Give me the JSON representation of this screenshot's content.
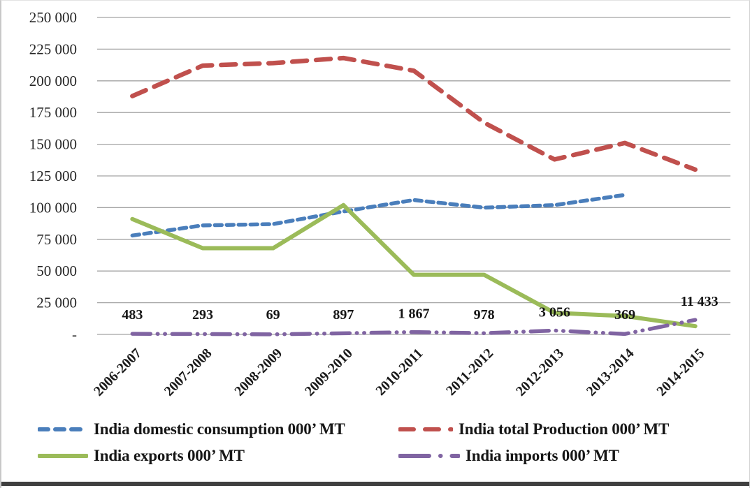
{
  "chart_data": {
    "type": "line",
    "title": "",
    "xlabel": "",
    "ylabel": "",
    "grid": true,
    "legend_position": "bottom",
    "categories": [
      "2006-2007",
      "2007-2008",
      "2008-2009",
      "2009-2010",
      "2010-2011",
      "2011-2012",
      "2012-2013",
      "2013-2014",
      "2014-2015"
    ],
    "y_axis": {
      "min": 0,
      "max": 250000,
      "step": 25000,
      "tick_labels": [
        "250 000",
        "225 000",
        "200 000",
        "175 000",
        "150 000",
        "125 000",
        "100 000",
        "75 000",
        "50 000",
        "25 000",
        "-"
      ]
    },
    "series": [
      {
        "name": "India domestic consumption 000’ MT",
        "color": "#4a7ebb",
        "style": "dashed",
        "values": [
          78000,
          86000,
          87000,
          97000,
          106000,
          100000,
          102000,
          110000,
          null
        ]
      },
      {
        "name": "India total Production 000’ MT",
        "color": "#c0504d",
        "style": "long-dashed",
        "values": [
          188000,
          212000,
          214000,
          218000,
          208000,
          167000,
          138000,
          151000,
          130000
        ]
      },
      {
        "name": "India exports 000’ MT",
        "color": "#9bbb59",
        "style": "solid",
        "values": [
          91000,
          68000,
          68000,
          102000,
          47000,
          47000,
          17000,
          14500,
          6500
        ]
      },
      {
        "name": "India imports 000’ MT",
        "color": "#8064a2",
        "style": "dash-dot-dot",
        "values": [
          483,
          293,
          69,
          897,
          1867,
          978,
          3056,
          369,
          11433
        ],
        "data_labels": [
          "483",
          "293",
          "69",
          "897",
          "1 867",
          "978",
          "3 056",
          "369",
          "11 433"
        ]
      }
    ]
  },
  "frame": {
    "gridline_color": "#a3a3a3",
    "tick_text_color": "#262626",
    "data_label_color": "#141414"
  }
}
